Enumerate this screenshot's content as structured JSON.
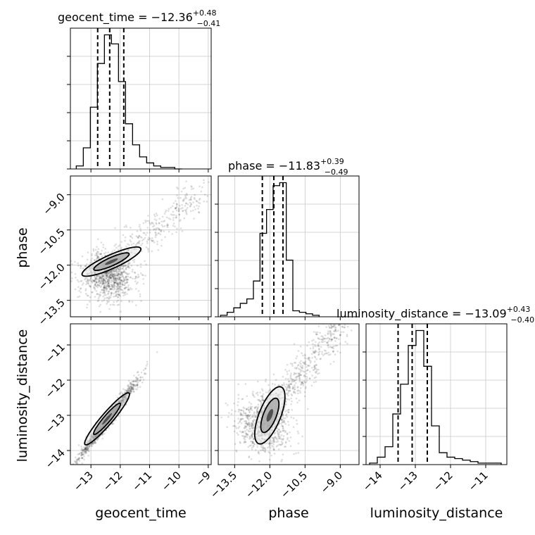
{
  "chart_data": {
    "type": "corner",
    "parameters": [
      "geocent_time",
      "phase",
      "luminosity_distance"
    ],
    "titles": {
      "geocent_time": {
        "prefix": "geocent_time = −12.36",
        "plus": "+0.48",
        "minus": "−0.41"
      },
      "phase": {
        "prefix": "phase = −11.83",
        "plus": "+0.39",
        "minus": "−0.49"
      },
      "luminosity_distance": {
        "prefix": "luminosity_distance = −13.09",
        "plus": "+0.43",
        "minus": "−0.40"
      }
    },
    "axis_labels": {
      "x": [
        "geocent_time",
        "phase",
        "luminosity_distance"
      ],
      "y": [
        "phase",
        "luminosity_distance"
      ]
    },
    "ranges": {
      "geocent_time": [
        -13.7,
        -8.9
      ],
      "phase": [
        -14.2,
        -8.2
      ],
      "luminosity_distance": [
        -14.4,
        -10.4
      ]
    },
    "ticks": {
      "geocent_time": [
        -13,
        -12,
        -11,
        -10,
        -9
      ],
      "phase": [
        -13.5,
        -12.0,
        -10.5,
        -9.0
      ],
      "luminosity_distance": [
        -14,
        -13,
        -12,
        -11
      ]
    },
    "tick_labels": {
      "geocent_time": [
        "−13",
        "−12",
        "−11",
        "−10",
        "−9"
      ],
      "phase": [
        "−13.5",
        "−12.0",
        "−10.5",
        "−9.0"
      ],
      "luminosity_distance": [
        "−14",
        "−13",
        "−12",
        "−11"
      ]
    },
    "quantiles": {
      "geocent_time": [
        -12.77,
        -12.36,
        -11.88
      ],
      "phase": [
        -12.32,
        -11.83,
        -11.44
      ],
      "luminosity_distance": [
        -13.49,
        -13.09,
        -12.66
      ]
    },
    "histograms": {
      "geocent_time": {
        "edges": [
          -13.5,
          -13.26,
          -13.02,
          -12.78,
          -12.54,
          -12.3,
          -12.06,
          -11.82,
          -11.58,
          -11.34,
          -11.1,
          -10.86,
          -10.62,
          -10.38,
          -10.14,
          -9.9
        ],
        "counts": [
          2,
          14,
          41,
          70,
          89,
          83,
          58,
          30,
          16,
          8,
          4,
          2,
          1,
          1,
          0
        ]
      },
      "phase": {
        "edges": [
          -14.1,
          -13.82,
          -13.54,
          -13.26,
          -12.98,
          -12.7,
          -12.42,
          -12.14,
          -11.86,
          -11.58,
          -11.3,
          -11.02,
          -10.74,
          -10.46,
          -10.18,
          -9.9
        ],
        "counts": [
          1,
          3,
          6,
          9,
          12,
          24,
          56,
          72,
          88,
          90,
          38,
          4,
          3,
          2,
          1
        ]
      },
      "luminosity_distance": {
        "edges": [
          -14.3,
          -14.08,
          -13.86,
          -13.64,
          -13.42,
          -13.2,
          -12.98,
          -12.76,
          -12.54,
          -12.32,
          -12.1,
          -11.88,
          -11.66,
          -11.44,
          -11.22,
          -11.0,
          -10.78,
          -10.56
        ],
        "counts": [
          1,
          5,
          12,
          34,
          54,
          80,
          90,
          66,
          26,
          8,
          5,
          4,
          3,
          2,
          1,
          1,
          1
        ]
      }
    },
    "grid": true
  }
}
